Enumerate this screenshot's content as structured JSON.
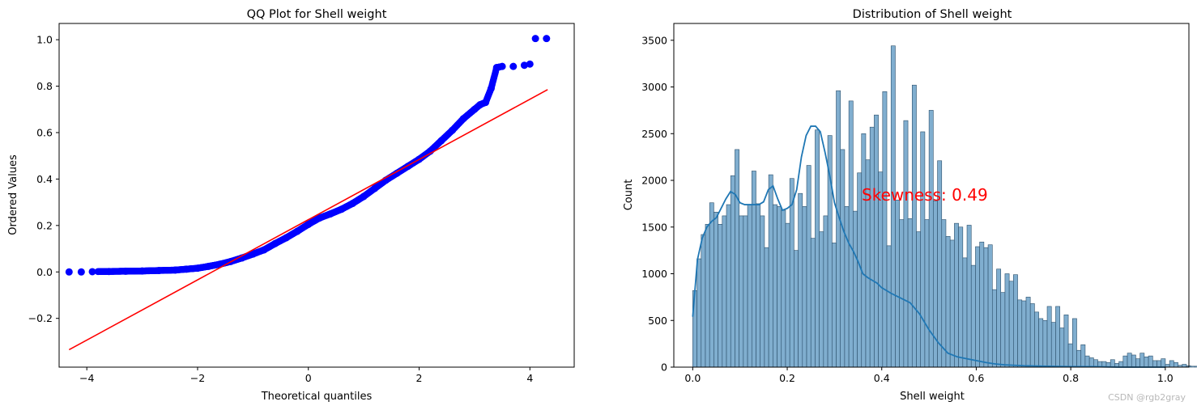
{
  "chart_data": [
    {
      "type": "scatter",
      "title": "QQ Plot for Shell weight",
      "xlabel": "Theoretical quantiles",
      "ylabel": "Ordered Values",
      "xlim": [
        -4.5,
        4.8
      ],
      "ylim": [
        -0.41,
        1.07
      ],
      "xticks": [
        -4,
        -2,
        0,
        2,
        4
      ],
      "yticks": [
        -0.2,
        0.0,
        0.2,
        0.4,
        0.6,
        0.8,
        1.0
      ],
      "tick_labels_x": [
        "−4",
        "−2",
        "0",
        "2",
        "4"
      ],
      "tick_labels_y": [
        "−0.2",
        "0.0",
        "0.2",
        "0.4",
        "0.6",
        "0.8",
        "1.0"
      ],
      "grid": false,
      "colors": {
        "points": "#0000ff",
        "fit_line": "#ff0000"
      },
      "series": [
        {
          "kind": "points",
          "x": [
            -4.32,
            -4.1,
            -3.9,
            -3.6,
            -3.3,
            -3.0,
            -2.7,
            -2.4,
            -2.2,
            -2.0,
            -1.8,
            -1.6,
            -1.4,
            -1.2,
            -1.0,
            -0.8,
            -0.6,
            -0.4,
            -0.2,
            0.0,
            0.2,
            0.4,
            0.6,
            0.8,
            1.0,
            1.2,
            1.4,
            1.6,
            1.8,
            2.0,
            2.2,
            2.4,
            2.6,
            2.8,
            3.0,
            3.1,
            3.2,
            3.3,
            3.4,
            3.5,
            3.7,
            3.9,
            4.0,
            4.1,
            4.3
          ],
          "y": [
            0.0,
            0.0,
            0.001,
            0.002,
            0.003,
            0.004,
            0.006,
            0.008,
            0.012,
            0.016,
            0.024,
            0.033,
            0.045,
            0.06,
            0.077,
            0.095,
            0.122,
            0.147,
            0.175,
            0.205,
            0.232,
            0.25,
            0.27,
            0.295,
            0.325,
            0.36,
            0.395,
            0.425,
            0.455,
            0.485,
            0.52,
            0.565,
            0.61,
            0.66,
            0.7,
            0.72,
            0.73,
            0.79,
            0.88,
            0.885,
            0.885,
            0.89,
            0.895,
            1.005,
            1.005
          ]
        },
        {
          "kind": "fit_line",
          "x": [
            -4.32,
            4.32
          ],
          "y": [
            -0.335,
            0.785
          ]
        }
      ]
    },
    {
      "type": "bar",
      "title": "Distribution of Shell weight",
      "xlabel": "Shell weight",
      "ylabel": "Count",
      "xlim": [
        -0.04,
        1.05
      ],
      "ylim": [
        0,
        3680
      ],
      "xticks": [
        0.0,
        0.2,
        0.4,
        0.6,
        0.8,
        1.0
      ],
      "yticks": [
        0,
        500,
        1000,
        1500,
        2000,
        2500,
        3000,
        3500
      ],
      "tick_labels_x": [
        "0.0",
        "0.2",
        "0.4",
        "0.6",
        "0.8",
        "1.0"
      ],
      "tick_labels_y": [
        "0",
        "500",
        "1000",
        "1500",
        "2000",
        "2500",
        "3000",
        "3500"
      ],
      "grid": false,
      "bin_start": 0.0,
      "bin_width": 0.00893,
      "colors": {
        "bar_fill": "#80aecf",
        "bar_edge": "#2b4f6b",
        "kde": "#1f77b4",
        "annotation": "#ff0000"
      },
      "counts": [
        820,
        1160,
        1420,
        1530,
        1760,
        1660,
        1530,
        1620,
        1740,
        2050,
        2330,
        1620,
        1620,
        1740,
        2100,
        1750,
        1620,
        1280,
        2060,
        1740,
        1720,
        1680,
        1540,
        2020,
        1250,
        1860,
        1720,
        2160,
        1380,
        2540,
        1450,
        1620,
        2480,
        1330,
        2960,
        2330,
        1720,
        2850,
        1670,
        2080,
        2500,
        2220,
        2570,
        2700,
        2090,
        2950,
        1300,
        3440,
        1790,
        1580,
        2640,
        1590,
        3020,
        1450,
        2520,
        1580,
        2750,
        1780,
        2210,
        1580,
        1400,
        1360,
        1540,
        1500,
        1170,
        1520,
        1090,
        1290,
        1340,
        1280,
        1310,
        830,
        1050,
        800,
        1000,
        920,
        990,
        720,
        710,
        750,
        680,
        590,
        520,
        500,
        650,
        480,
        650,
        420,
        560,
        250,
        520,
        180,
        240,
        120,
        100,
        80,
        60,
        60,
        50,
        80,
        40,
        60,
        120,
        150,
        130,
        90,
        150,
        110,
        120,
        70,
        70,
        90,
        30,
        70,
        50,
        20,
        30,
        15,
        10,
        10,
        5,
        5,
        15,
        5,
        0,
        5,
        5,
        0,
        5,
        5,
        5,
        0,
        0,
        0,
        0,
        0,
        0,
        5,
        0,
        0,
        0,
        0,
        0,
        0,
        0,
        0,
        0,
        0,
        0,
        0,
        0,
        0,
        0,
        0,
        0,
        0,
        0,
        0,
        0,
        0,
        10,
        0,
        0,
        0,
        0,
        0,
        0,
        0,
        0,
        0,
        0,
        0,
        0,
        0,
        0,
        0,
        0,
        0,
        0,
        5
      ],
      "kde": {
        "x": [
          0.0,
          0.01,
          0.02,
          0.03,
          0.04,
          0.05,
          0.06,
          0.07,
          0.08,
          0.09,
          0.1,
          0.11,
          0.12,
          0.13,
          0.14,
          0.15,
          0.16,
          0.17,
          0.18,
          0.19,
          0.2,
          0.21,
          0.22,
          0.23,
          0.24,
          0.25,
          0.26,
          0.27,
          0.28,
          0.29,
          0.3,
          0.31,
          0.32,
          0.33,
          0.34,
          0.35,
          0.36,
          0.37,
          0.38,
          0.39,
          0.4,
          0.42,
          0.44,
          0.46,
          0.48,
          0.5,
          0.52,
          0.54,
          0.56,
          0.58,
          0.6,
          0.62,
          0.64,
          0.66,
          0.7,
          0.75,
          0.8,
          0.85,
          0.9,
          0.95,
          1.0
        ],
        "y": [
          540,
          1150,
          1380,
          1500,
          1560,
          1600,
          1700,
          1800,
          1880,
          1850,
          1760,
          1740,
          1740,
          1740,
          1740,
          1770,
          1900,
          1940,
          1800,
          1680,
          1700,
          1740,
          1900,
          2250,
          2480,
          2580,
          2580,
          2520,
          2300,
          2050,
          1760,
          1600,
          1450,
          1330,
          1240,
          1130,
          1000,
          960,
          930,
          900,
          850,
          790,
          740,
          690,
          570,
          400,
          260,
          150,
          110,
          90,
          70,
          50,
          35,
          25,
          15,
          10,
          5,
          5,
          0,
          0,
          0
        ]
      },
      "annotation": "Skewness: 0.49"
    }
  ],
  "watermark": "CSDN @rgb2gray"
}
